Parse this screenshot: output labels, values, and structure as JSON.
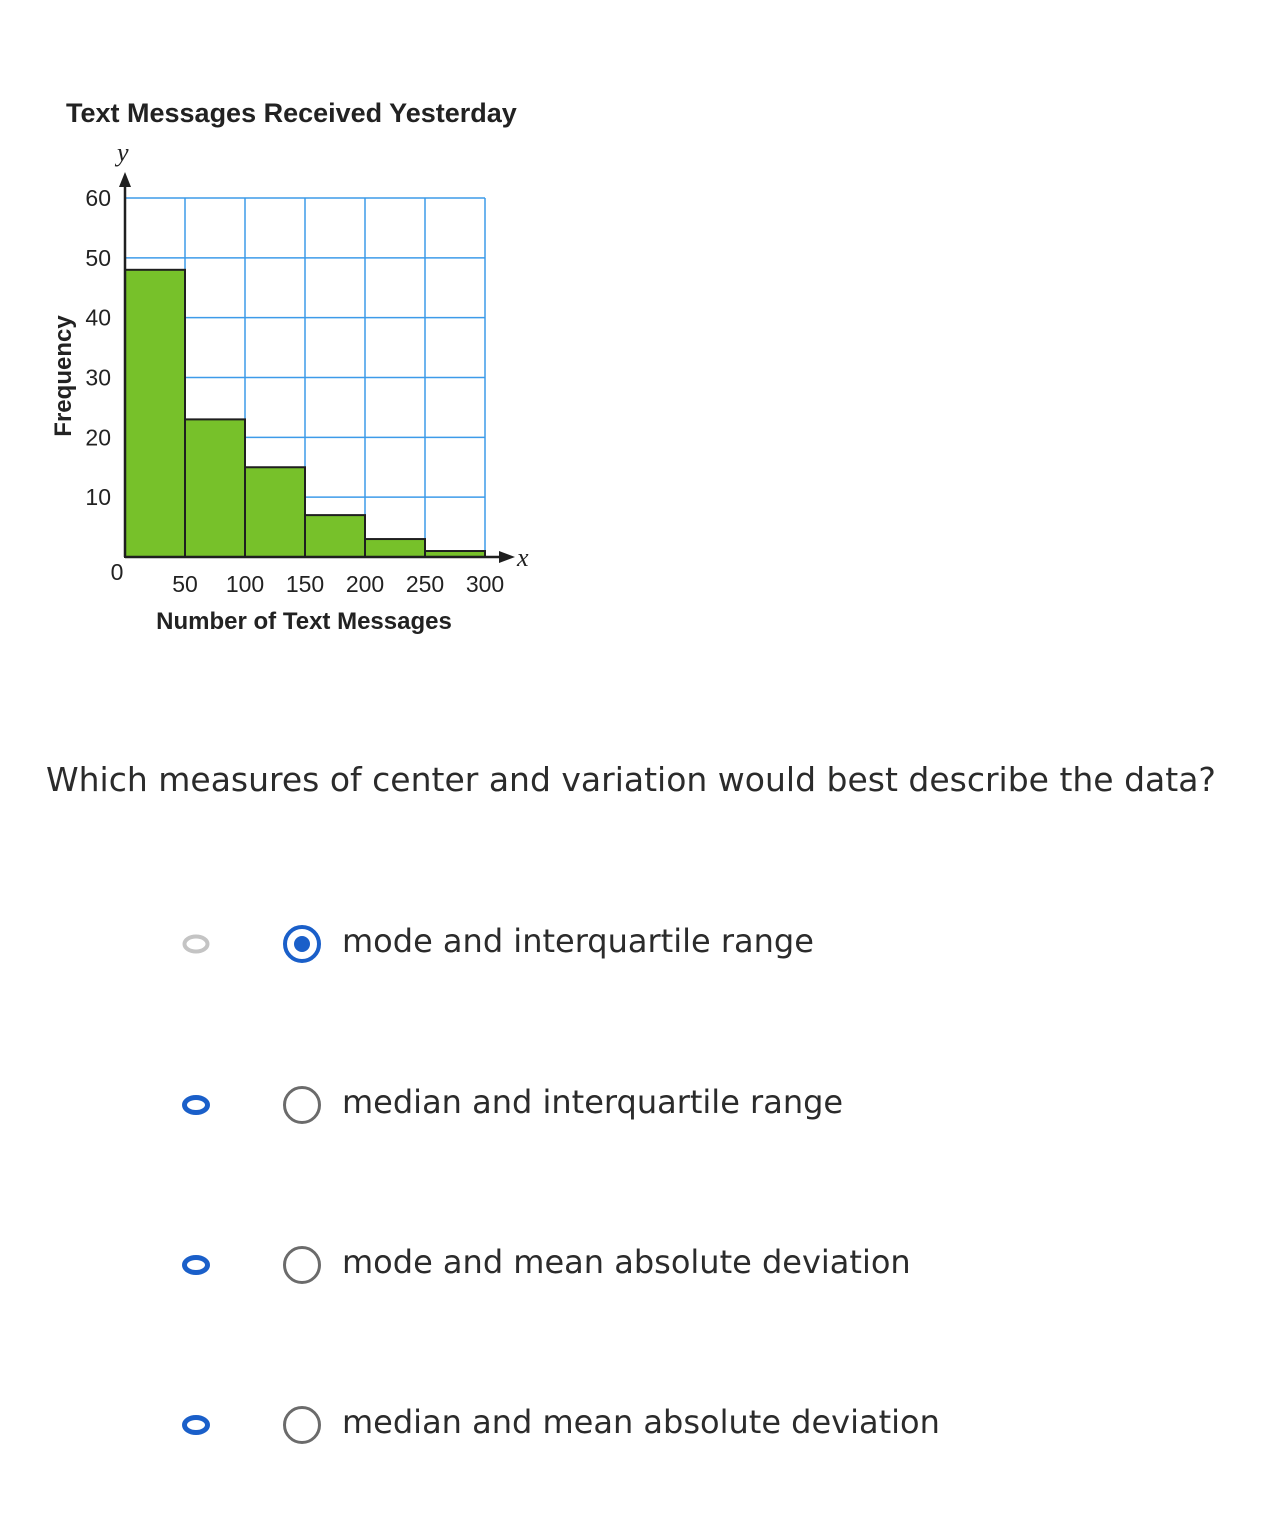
{
  "chart_data": {
    "type": "bar",
    "title": "Text Messages Received Yesterday",
    "xlabel": "Number of Text Messages",
    "ylabel": "Frequency",
    "x_axis_letter": "x",
    "y_axis_letter": "y",
    "origin_label": "0",
    "bins": [
      [
        0,
        50
      ],
      [
        50,
        100
      ],
      [
        100,
        150
      ],
      [
        150,
        200
      ],
      [
        200,
        250
      ],
      [
        250,
        300
      ]
    ],
    "values": [
      48,
      23,
      15,
      7,
      3,
      1
    ],
    "x_ticks": [
      50,
      100,
      150,
      200,
      250,
      300
    ],
    "y_ticks": [
      10,
      20,
      30,
      40,
      50,
      60
    ],
    "xlim": [
      0,
      300
    ],
    "ylim": [
      0,
      60
    ],
    "grid": true,
    "bar_color": "#77c12a",
    "bar_edge_color": "#1f1f1f",
    "grid_color": "#3d9be9"
  },
  "question": {
    "text": "Which measures of center and variation would best describe the data?"
  },
  "options": [
    {
      "label": "mode and interquartile range",
      "selected": true,
      "eye_icon": "eye-icon",
      "eye_color": "#c4c4c4"
    },
    {
      "label": "median and interquartile range",
      "selected": false,
      "eye_icon": "eye-icon",
      "eye_color": "#1a5fc9"
    },
    {
      "label": "mode and mean absolute deviation",
      "selected": false,
      "eye_icon": "eye-icon",
      "eye_color": "#1a5fc9"
    },
    {
      "label": "median and mean absolute deviation",
      "selected": false,
      "eye_icon": "eye-icon",
      "eye_color": "#1a5fc9"
    }
  ],
  "colors": {
    "radio_selected": "#1a5fc9",
    "radio_unselected": "#6b6b6b"
  }
}
